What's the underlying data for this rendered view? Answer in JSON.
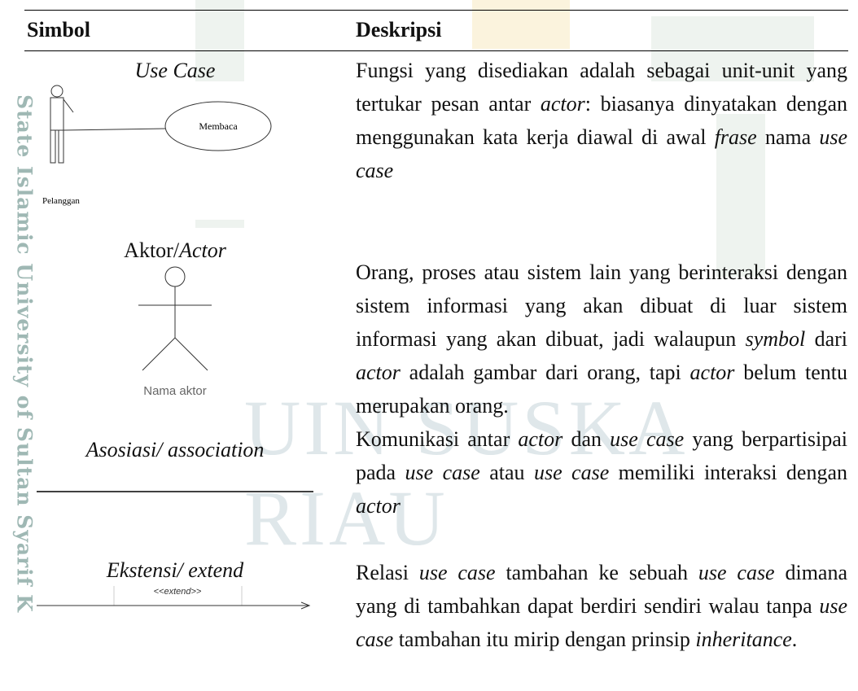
{
  "watermark": {
    "side": "State Islamic University of Sultan Syarif K",
    "center": "UIN SUSKA RIAU"
  },
  "table": {
    "headers": [
      "Simbol",
      "Deskripsi"
    ],
    "rows": [
      {
        "symbol": [
          {
            "text": "Use Case",
            "italic": true
          }
        ],
        "diagram": {
          "use_case": "Membaca",
          "actor": "Pelanggan"
        },
        "description": [
          {
            "text": "Fungsi yang disediakan adalah sebagai unit-unit yang tertukar pesan antar ",
            "italic": false
          },
          {
            "text": "actor",
            "italic": true
          },
          {
            "text": ": biasanya dinyatakan dengan menggunakan kata kerja diawal di awal ",
            "italic": false
          },
          {
            "text": "frase",
            "italic": true
          },
          {
            "text": " nama ",
            "italic": false
          },
          {
            "text": "use case",
            "italic": true
          }
        ]
      },
      {
        "symbol": [
          {
            "text": "Aktor/",
            "italic": false
          },
          {
            "text": "Actor",
            "italic": true
          }
        ],
        "diagram": {
          "actor": "Nama aktor"
        },
        "description": [
          {
            "text": "Orang, proses atau sistem lain yang berinteraksi dengan sistem informasi yang akan dibuat di luar sistem informasi yang akan dibuat, jadi walaupun ",
            "italic": false
          },
          {
            "text": "symbol",
            "italic": true
          },
          {
            "text": " dari ",
            "italic": false
          },
          {
            "text": "actor",
            "italic": true
          },
          {
            "text": " adalah gambar dari orang, tapi ",
            "italic": false
          },
          {
            "text": "actor",
            "italic": true
          },
          {
            "text": " belum tentu merupakan orang.",
            "italic": false
          }
        ]
      },
      {
        "symbol": [
          {
            "text": "Asosiasi/ association",
            "italic": true
          }
        ],
        "description": [
          {
            "text": "Komunikasi antar ",
            "italic": false
          },
          {
            "text": "actor",
            "italic": true
          },
          {
            "text": " dan ",
            "italic": false
          },
          {
            "text": "use case",
            "italic": true
          },
          {
            "text": " yang berpartisipai pada ",
            "italic": false
          },
          {
            "text": "use case",
            "italic": true
          },
          {
            "text": " atau ",
            "italic": false
          },
          {
            "text": "use case",
            "italic": true
          },
          {
            "text": " memiliki interaksi dengan ",
            "italic": false
          },
          {
            "text": "actor",
            "italic": true
          }
        ]
      },
      {
        "symbol": [
          {
            "text": "Ekstensi/ extend",
            "italic": true
          }
        ],
        "diagram": {
          "stereotype": "<<extend>>"
        },
        "description": [
          {
            "text": "Relasi ",
            "italic": false
          },
          {
            "text": "use case",
            "italic": true
          },
          {
            "text": " tambahan ke sebuah ",
            "italic": false
          },
          {
            "text": "use case",
            "italic": true
          },
          {
            "text": " dimana yang di tambahkan dapat berdiri sendiri walau tanpa ",
            "italic": false
          },
          {
            "text": "use case",
            "italic": true
          },
          {
            "text": " tambahan itu mirip dengan prinsip ",
            "italic": false
          },
          {
            "text": "inheritance",
            "italic": true
          },
          {
            "text": ".",
            "italic": false
          }
        ]
      }
    ]
  }
}
